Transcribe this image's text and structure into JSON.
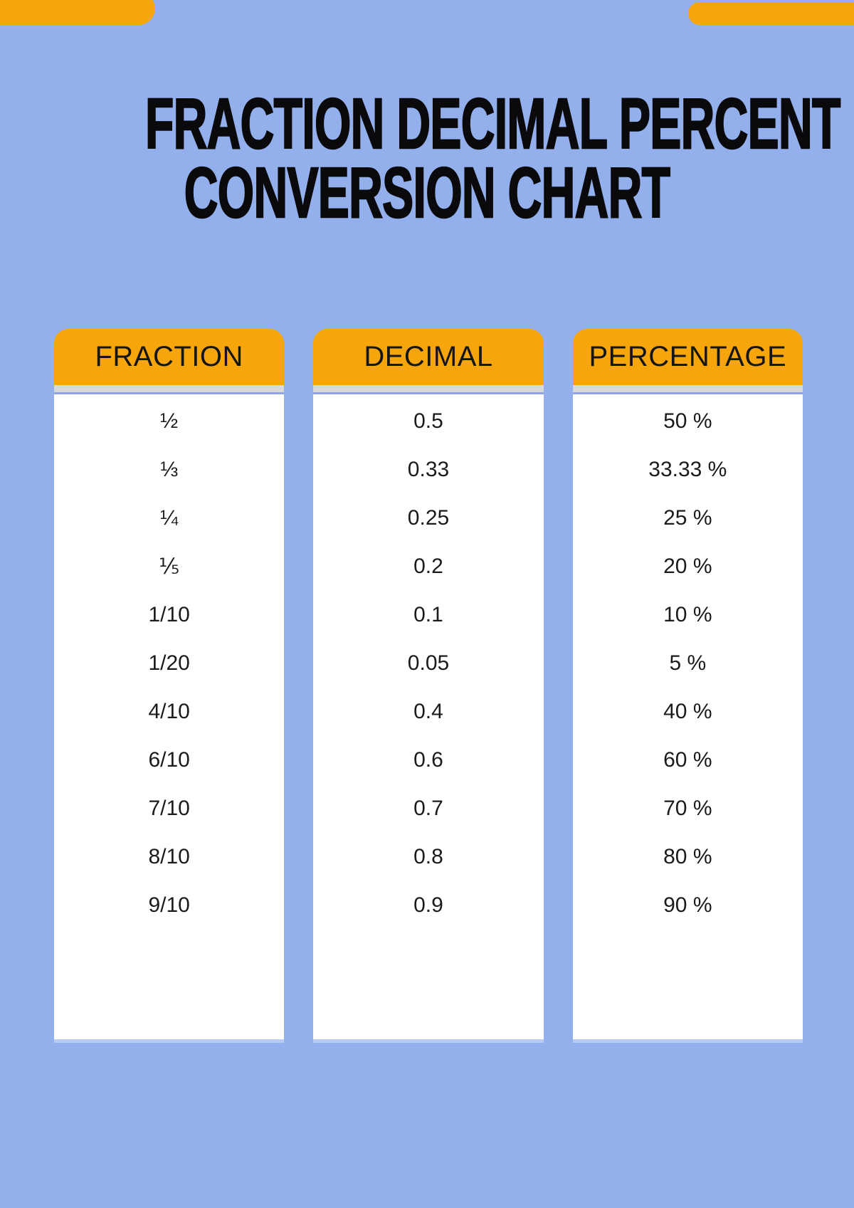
{
  "page": {
    "background_color": "#93B0ED"
  },
  "decor": {
    "accent_bar_color": "#F6A60A"
  },
  "title": {
    "full": "FRACTION DECIMAL PERCENT CONVERSION CHART",
    "line1": "FRACTION DECIMAL PERCENT",
    "line2": "CONVERSION CHART",
    "color": "#0A0A0C"
  },
  "table": {
    "header_bg_color": "#F6A60A",
    "header_text_color": "#151515",
    "strip_color": "#D8D8D8",
    "accent_line_color": "#8FA6E0",
    "body_bg_color": "#FFFFFF",
    "cell_text_color": "#1B1B1B",
    "columns": [
      {
        "header": "FRACTION",
        "values": [
          "½",
          "⅓",
          "¼",
          "⅕",
          "1/10",
          "1/20",
          "4/10",
          "6/10",
          "7/10",
          "8/10",
          "9/10"
        ]
      },
      {
        "header": "DECIMAL",
        "values": [
          "0.5",
          "0.33",
          "0.25",
          "0.2",
          "0.1",
          "0.05",
          "0.4",
          "0.6",
          "0.7",
          "0.8",
          "0.9"
        ]
      },
      {
        "header": "PERCENTAGE",
        "values": [
          "50 %",
          "33.33 %",
          "25 %",
          "20 %",
          "10 %",
          "5 %",
          "40 %",
          "60 %",
          "70 %",
          "80 %",
          "90 %"
        ]
      }
    ]
  },
  "chart_data": {
    "type": "table",
    "title": "FRACTION DECIMAL PERCENT CONVERSION CHART",
    "columns": [
      "FRACTION",
      "DECIMAL",
      "PERCENTAGE"
    ],
    "rows": [
      [
        "½",
        "0.5",
        "50 %"
      ],
      [
        "⅓",
        "0.33",
        "33.33 %"
      ],
      [
        "¼",
        "0.25",
        "25 %"
      ],
      [
        "⅕",
        "0.2",
        "20 %"
      ],
      [
        "1/10",
        "0.1",
        "10 %"
      ],
      [
        "1/20",
        "0.05",
        "5 %"
      ],
      [
        "4/10",
        "0.4",
        "40 %"
      ],
      [
        "6/10",
        "0.6",
        "60 %"
      ],
      [
        "7/10",
        "0.7",
        "70 %"
      ],
      [
        "8/10",
        "0.8",
        "80 %"
      ],
      [
        "9/10",
        "0.9",
        "90 %"
      ]
    ]
  }
}
